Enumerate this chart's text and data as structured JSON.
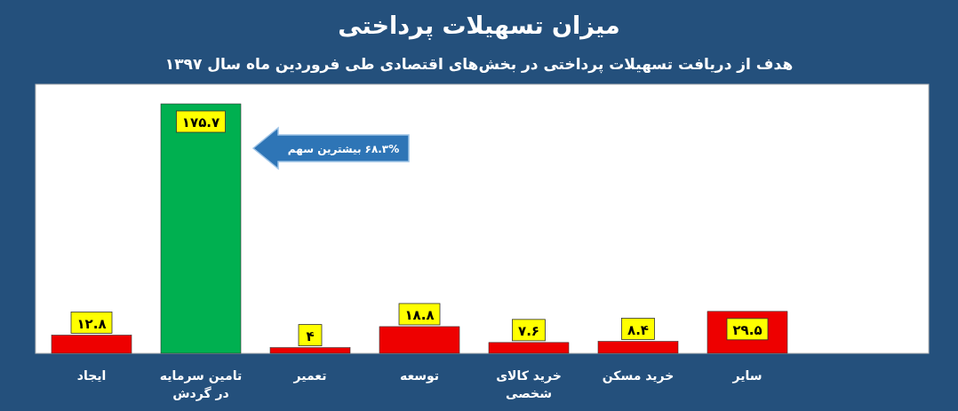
{
  "chart_data": {
    "type": "bar",
    "title": "میزان تسهیلات پرداختی",
    "subtitle": "هدف از دریافت تسهیلات پرداختی در بخش‌های اقتصادی طی فروردین ماه سال ۱۳۹۷",
    "categories": [
      "ایجاد",
      "تامین سرمایه در گردش",
      "تعمیر",
      "توسعه",
      "خرید کالای شخصی",
      "خرید مسکن",
      "سایر"
    ],
    "values": [
      12.8,
      175.7,
      4,
      18.8,
      7.6,
      8.4,
      29.5
    ],
    "colors": [
      "#ee0000",
      "#00b050",
      "#ee0000",
      "#ee0000",
      "#ee0000",
      "#ee0000",
      "#ee0000"
    ],
    "value_labels": [
      "۱۲.۸",
      "۱۷۵.۷",
      "۴",
      "۱۸.۸",
      "۷.۶",
      "۸.۴",
      "۲۹.۵"
    ],
    "annotations": [
      "۶۸.۳% بیشترین سهم"
    ]
  }
}
